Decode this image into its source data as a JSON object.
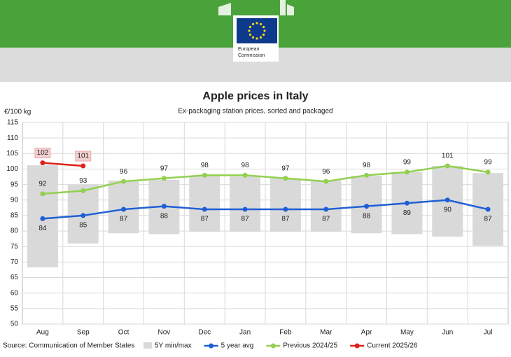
{
  "header": {
    "logo_text": [
      "European",
      "Commission"
    ]
  },
  "chart_data": {
    "type": "line",
    "title": "Apple prices in Italy",
    "subtitle": "Ex-packaging station prices, sorted and packaged",
    "y_label": "€/100 kg",
    "source": "Source: Communication of Member States",
    "categories": [
      "Aug",
      "Sep",
      "Oct",
      "Nov",
      "Dec",
      "Jan",
      "Feb",
      "Mar",
      "Apr",
      "May",
      "Jun",
      "Jul"
    ],
    "range": {
      "name": "5Y min/max",
      "color": "#d9d9d9",
      "low": [
        68.3,
        76,
        79.3,
        79,
        79.8,
        79.8,
        79.8,
        79.8,
        79.3,
        79,
        78.2,
        75.3
      ],
      "high": [
        101.2,
        95,
        96.3,
        96.5,
        97.8,
        97.6,
        97,
        96.3,
        97.8,
        99,
        101,
        98.7
      ]
    },
    "series": [
      {
        "name": "5 year avg",
        "color": "#1f5fd6",
        "values": [
          84,
          85,
          87,
          88,
          87,
          87,
          87,
          87,
          88,
          89,
          90,
          87
        ]
      },
      {
        "name": "Previous 2024/25",
        "color": "#92d050",
        "values": [
          92,
          93,
          96,
          97,
          98,
          98,
          97,
          96,
          98,
          99,
          101,
          99
        ]
      },
      {
        "name": "Current 2025/26",
        "color": "#e0201b",
        "values": [
          102,
          101,
          null,
          null,
          null,
          null,
          null,
          null,
          null,
          null,
          null,
          null
        ]
      }
    ],
    "ylim": [
      50,
      115
    ],
    "yticks": [
      50,
      55,
      60,
      65,
      70,
      75,
      80,
      85,
      90,
      95,
      100,
      105,
      110,
      115
    ],
    "grid": true
  }
}
